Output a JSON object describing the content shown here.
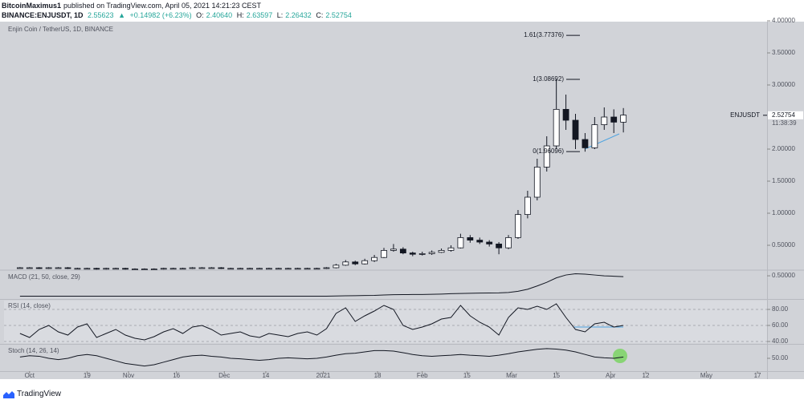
{
  "header": {
    "author": "BitcoinMaximus1",
    "published": "published on TradingView.com, April 05, 2021 14:21:23 CEST",
    "symbol": "BINANCE:ENJUSDT, 1D",
    "price": "2.55623",
    "arrow": "▲",
    "change": "+0.14982 (+6.23%)",
    "o_label": "O:",
    "o": "2.40640",
    "h_label": "H:",
    "h": "2.63597",
    "l_label": "L:",
    "l": "2.26432",
    "c_label": "C:",
    "c": "2.52754"
  },
  "footer": {
    "brand": "TradingView"
  },
  "chart_data": {
    "type": "candlestick",
    "title": "Enjin Coin / TetherUS, 1D, BINANCE",
    "up_color": "#ffffff",
    "down_color": "#131722",
    "grid": false,
    "x": [
      0,
      3,
      6,
      9,
      12,
      15,
      18,
      21,
      24,
      27,
      30,
      33,
      36,
      39,
      42,
      45,
      48,
      51,
      54,
      57,
      60,
      63,
      66,
      69,
      72,
      75,
      78,
      81,
      84,
      87,
      90,
      93,
      96,
      99,
      102,
      105,
      108,
      111,
      114,
      117,
      120,
      123,
      126,
      129,
      132,
      135,
      138,
      141,
      144,
      147,
      150,
      153,
      156,
      159,
      162,
      165,
      168,
      171,
      174,
      177,
      180,
      183,
      186,
      189
    ],
    "open": [
      0.15,
      0.15,
      0.15,
      0.14,
      0.15,
      0.15,
      0.14,
      0.14,
      0.14,
      0.13,
      0.14,
      0.14,
      0.13,
      0.13,
      0.13,
      0.13,
      0.14,
      0.14,
      0.14,
      0.15,
      0.15,
      0.15,
      0.14,
      0.14,
      0.14,
      0.14,
      0.14,
      0.14,
      0.14,
      0.14,
      0.14,
      0.14,
      0.14,
      0.15,
      0.19,
      0.24,
      0.21,
      0.26,
      0.31,
      0.42,
      0.44,
      0.38,
      0.36,
      0.37,
      0.39,
      0.42,
      0.46,
      0.62,
      0.58,
      0.55,
      0.52,
      0.46,
      0.62,
      0.98,
      1.25,
      1.72,
      2.05,
      2.62,
      2.45,
      2.15,
      2.02,
      2.38,
      2.5,
      2.42
    ],
    "high": [
      0.16,
      0.16,
      0.16,
      0.16,
      0.16,
      0.16,
      0.15,
      0.15,
      0.15,
      0.15,
      0.15,
      0.15,
      0.14,
      0.14,
      0.14,
      0.15,
      0.15,
      0.15,
      0.16,
      0.16,
      0.16,
      0.16,
      0.15,
      0.15,
      0.15,
      0.15,
      0.15,
      0.15,
      0.15,
      0.15,
      0.15,
      0.15,
      0.16,
      0.21,
      0.27,
      0.26,
      0.29,
      0.35,
      0.46,
      0.52,
      0.47,
      0.4,
      0.4,
      0.42,
      0.45,
      0.5,
      0.68,
      0.66,
      0.62,
      0.58,
      0.55,
      0.66,
      1.05,
      1.35,
      1.85,
      2.2,
      3.09,
      2.85,
      2.55,
      2.25,
      2.5,
      2.65,
      2.62,
      2.64
    ],
    "low": [
      0.14,
      0.14,
      0.13,
      0.13,
      0.14,
      0.13,
      0.13,
      0.13,
      0.12,
      0.12,
      0.13,
      0.12,
      0.12,
      0.12,
      0.12,
      0.12,
      0.13,
      0.13,
      0.13,
      0.14,
      0.14,
      0.13,
      0.13,
      0.13,
      0.13,
      0.13,
      0.13,
      0.13,
      0.13,
      0.13,
      0.13,
      0.13,
      0.13,
      0.14,
      0.18,
      0.19,
      0.2,
      0.24,
      0.3,
      0.4,
      0.36,
      0.33,
      0.34,
      0.35,
      0.38,
      0.4,
      0.45,
      0.54,
      0.52,
      0.48,
      0.36,
      0.44,
      0.6,
      0.92,
      1.2,
      1.65,
      2.0,
      2.3,
      2.0,
      1.96,
      2.0,
      2.3,
      2.25,
      2.26
    ],
    "close": [
      0.15,
      0.15,
      0.14,
      0.15,
      0.15,
      0.14,
      0.14,
      0.14,
      0.13,
      0.14,
      0.14,
      0.13,
      0.13,
      0.13,
      0.13,
      0.14,
      0.14,
      0.14,
      0.15,
      0.15,
      0.15,
      0.14,
      0.14,
      0.14,
      0.14,
      0.14,
      0.14,
      0.14,
      0.14,
      0.14,
      0.14,
      0.14,
      0.15,
      0.19,
      0.24,
      0.21,
      0.26,
      0.31,
      0.42,
      0.44,
      0.38,
      0.36,
      0.37,
      0.39,
      0.42,
      0.46,
      0.62,
      0.58,
      0.55,
      0.52,
      0.46,
      0.62,
      0.98,
      1.25,
      1.72,
      2.05,
      2.62,
      2.45,
      2.15,
      2.02,
      2.38,
      2.5,
      2.42,
      2.53
    ],
    "xlim": [
      -5,
      234
    ],
    "xticks": [
      {
        "value": 3,
        "label": "Oct"
      },
      {
        "value": 21,
        "label": "19"
      },
      {
        "value": 34,
        "label": "Nov"
      },
      {
        "value": 49,
        "label": "16"
      },
      {
        "value": 64,
        "label": "Dec"
      },
      {
        "value": 77,
        "label": "14"
      },
      {
        "value": 95,
        "label": "2021"
      },
      {
        "value": 112,
        "label": "18"
      },
      {
        "value": 126,
        "label": "Feb"
      },
      {
        "value": 140,
        "label": "15"
      },
      {
        "value": 154,
        "label": "Mar"
      },
      {
        "value": 168,
        "label": "15"
      },
      {
        "value": 185,
        "label": "Apr"
      },
      {
        "value": 196,
        "label": "12"
      },
      {
        "value": 215,
        "label": "May"
      },
      {
        "value": 231,
        "label": "17"
      }
    ],
    "ylim": [
      0.1375,
      3.9875
    ],
    "yticks": [
      {
        "value": 0.5,
        "label": "0.50000"
      },
      {
        "value": 1,
        "label": "1.00000"
      },
      {
        "value": 1.5,
        "label": "1.50000"
      },
      {
        "value": 2,
        "label": "2.00000"
      },
      {
        "value": 3,
        "label": "3.00000"
      },
      {
        "value": 3.5,
        "label": "3.50000"
      },
      {
        "value": 4,
        "label": "4.00000"
      }
    ],
    "fib_levels": [
      {
        "value": 3.77376,
        "label": "1.61(3.77376)"
      },
      {
        "value": 3.08692,
        "label": "1(3.08692)"
      },
      {
        "value": 1.96096,
        "label": "0(1.96096)"
      }
    ],
    "last_price": {
      "symbol": "ENJUSDT",
      "value": 2.52754,
      "label": "2.52754",
      "countdown": "11:38:39"
    },
    "indicators": [
      {
        "name": "MACD (21, 50, close, 29)",
        "color": "#131722",
        "ylim": [
          -0.05,
          0.6
        ],
        "yticks": [
          {
            "value": 0.5,
            "label": "0.50000"
          }
        ],
        "values": [
          0,
          0,
          0,
          0,
          0,
          0,
          0,
          0,
          0,
          0,
          0,
          0,
          0,
          0,
          0,
          0,
          0,
          0,
          0,
          0,
          0,
          0,
          0,
          0,
          0,
          0,
          0,
          0,
          0,
          0,
          0,
          0,
          0,
          0.005,
          0.01,
          0.012,
          0.016,
          0.02,
          0.03,
          0.035,
          0.038,
          0.04,
          0.042,
          0.045,
          0.05,
          0.06,
          0.065,
          0.07,
          0.075,
          0.078,
          0.08,
          0.09,
          0.12,
          0.17,
          0.25,
          0.34,
          0.45,
          0.52,
          0.55,
          0.54,
          0.52,
          0.5,
          0.49,
          0.48
        ]
      },
      {
        "name": "RSI (14, close)",
        "color": "#131722",
        "ylim": [
          38,
          91
        ],
        "yticks": [
          {
            "value": 80,
            "label": "80.00"
          },
          {
            "value": 60,
            "label": "60.00"
          },
          {
            "value": 40,
            "label": "40.00"
          }
        ],
        "values": [
          50,
          45,
          55,
          60,
          52,
          48,
          58,
          62,
          45,
          50,
          55,
          48,
          44,
          42,
          46,
          52,
          56,
          50,
          58,
          60,
          55,
          48,
          50,
          52,
          47,
          45,
          50,
          48,
          46,
          50,
          52,
          48,
          56,
          75,
          82,
          65,
          72,
          78,
          85,
          80,
          60,
          55,
          58,
          62,
          68,
          70,
          85,
          72,
          64,
          58,
          48,
          70,
          82,
          80,
          84,
          80,
          87,
          70,
          55,
          52,
          62,
          64,
          58,
          60
        ]
      },
      {
        "name": "Stoch (14, 26, 14)",
        "color": "#131722",
        "ylim": [
          0,
          100
        ],
        "yticks": [
          {
            "value": 50,
            "label": "50.00"
          }
        ],
        "values": [
          55,
          60,
          58,
          50,
          45,
          50,
          60,
          65,
          60,
          50,
          40,
          30,
          25,
          20,
          25,
          35,
          45,
          55,
          60,
          62,
          58,
          55,
          50,
          48,
          45,
          42,
          45,
          50,
          52,
          50,
          48,
          50,
          55,
          62,
          68,
          70,
          75,
          80,
          80,
          78,
          72,
          65,
          60,
          58,
          60,
          62,
          65,
          62,
          60,
          58,
          62,
          68,
          75,
          80,
          85,
          88,
          86,
          82,
          75,
          65,
          55,
          52,
          50,
          55
        ]
      }
    ]
  }
}
